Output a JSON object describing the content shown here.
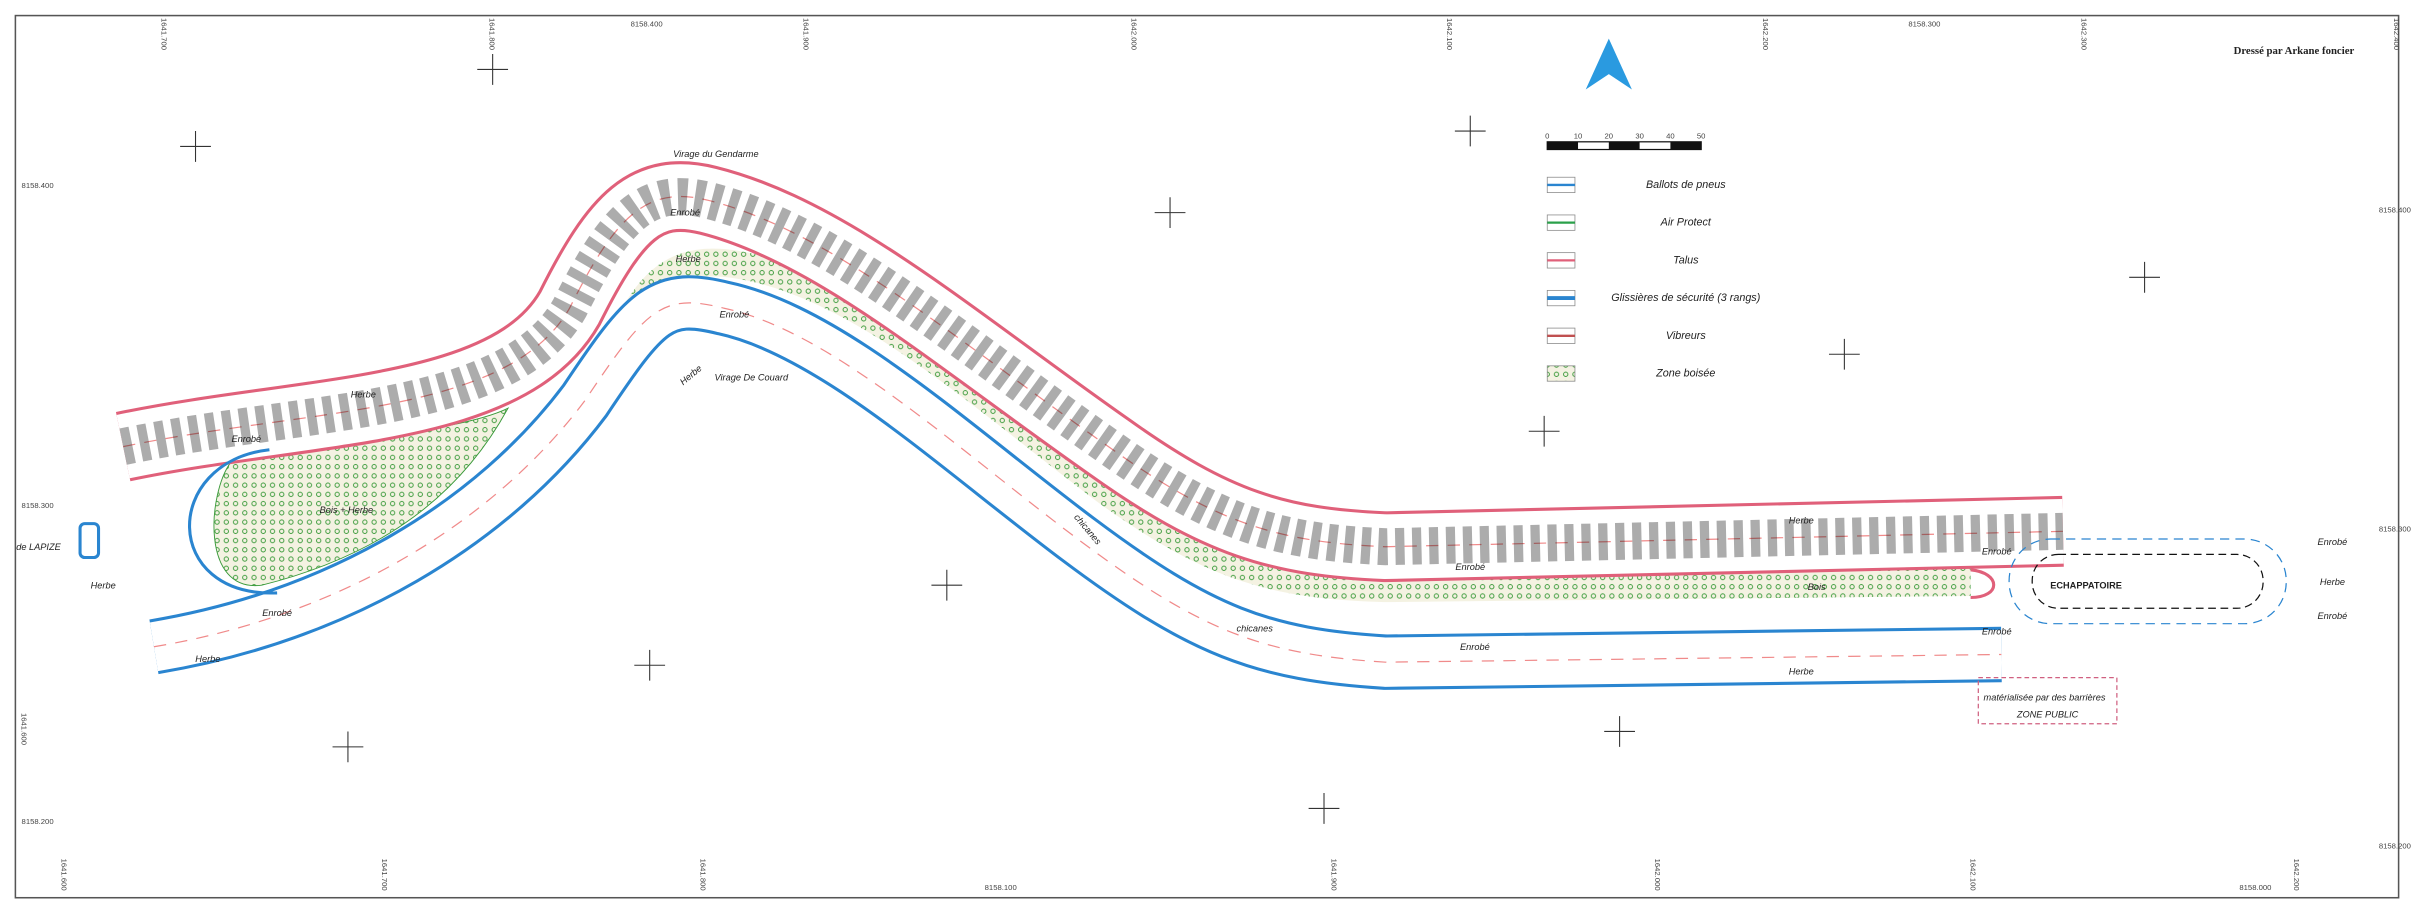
{
  "title_block": {
    "title": "Dressé par Arkane foncier"
  },
  "legend": {
    "scale_ticks": [
      0,
      10,
      20,
      30,
      40,
      50
    ],
    "items": [
      "Ballots de pneus",
      "Air Protect",
      "Talus",
      "Glissières de sécurité (3 rangs)",
      "Vibreurs",
      "Zone boisée"
    ]
  },
  "grid_labels": {
    "top": [
      "1641.700",
      "1641.800",
      "8158.400",
      "1641.900",
      "1642.000",
      "1642.100",
      "1642.200",
      "8158.300",
      "1642.300",
      "1642.400"
    ],
    "bottom": [
      "1641.600",
      "1641.700",
      "1641.800",
      "8158.100",
      "1641.900",
      "1642.000",
      "1642.100",
      "8158.000",
      "1642.200"
    ],
    "left": [
      "8158.400",
      "8158.300",
      "1641.600",
      "8158.200"
    ],
    "right": [
      "8158.400",
      "8158.300",
      "8158.200"
    ]
  },
  "map_labels": [
    "Virage du Gendarme",
    "Virage De Couard",
    "Enrobé",
    "Herbe",
    "Enrobé",
    "Herbe",
    "Enrobé",
    "Herbe",
    "Bois + Herbe",
    "Enrobé",
    "Herbe",
    "Herbe",
    "de LAPIZE",
    "chicanes",
    "chicanes",
    "Herbe",
    "Enrobé",
    "Enrobé",
    "Herbe",
    "Enrobé",
    "Enrobé",
    "ECHAPPATOIRE",
    "Enrobé",
    "Herbe",
    "Enrobé",
    "Bois",
    "matérialisée par des barrières",
    "ZONE PUBLIC"
  ]
}
